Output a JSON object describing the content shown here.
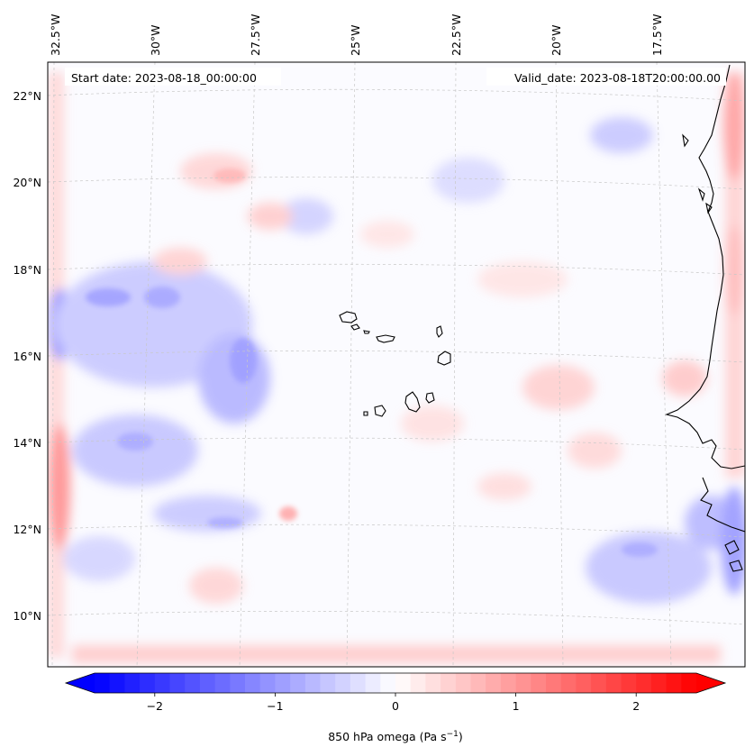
{
  "header": {
    "start_date": "Start date: 2023-08-18_00:00:00",
    "valid_date": "Valid_date: 2023-08-18T20:00:00.00"
  },
  "map": {
    "lon_labels": [
      "32.5°W",
      "30°W",
      "27.5°W",
      "25°W",
      "22.5°W",
      "20°W",
      "17.5°W"
    ],
    "lat_labels": [
      "22°N",
      "20°N",
      "18°N",
      "16°N",
      "14°N",
      "12°N",
      "10°N"
    ],
    "field": "850 hPa omega",
    "palette": {
      "negative": "#0000ff",
      "zero": "#ffffff",
      "positive": "#ff0000"
    },
    "coastline_color": "#000000",
    "gridlines": true
  },
  "colorbar": {
    "label": "850 hPa omega (Pa s",
    "label_sup": "−1",
    "label_tail": ")",
    "range": [
      -2.75,
      2.75
    ],
    "ticks": [
      {
        "value": -2,
        "label": "−2"
      },
      {
        "value": -1,
        "label": "−1"
      },
      {
        "value": 0,
        "label": "0"
      },
      {
        "value": 1,
        "label": "1"
      },
      {
        "value": 2,
        "label": "2"
      }
    ],
    "extend": "both"
  }
}
